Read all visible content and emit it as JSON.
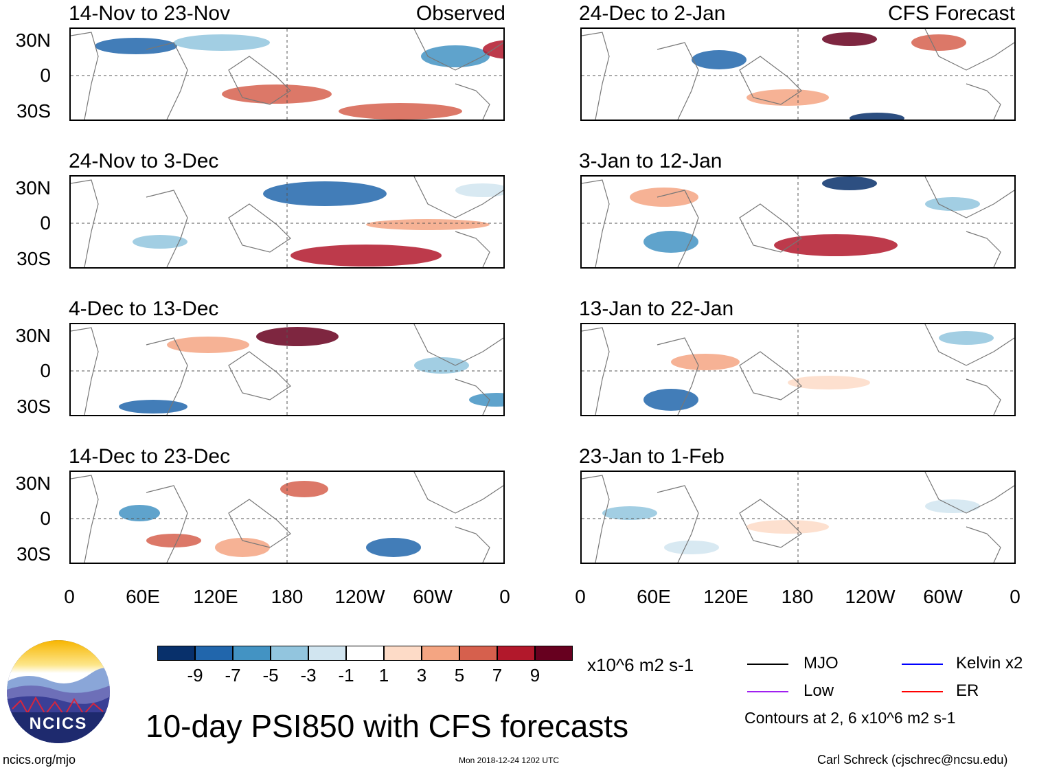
{
  "panels": [
    {
      "title": "14-Nov to 23-Nov",
      "label": "Observed",
      "column": "left",
      "row": 0
    },
    {
      "title": "24-Nov to 3-Dec",
      "label": "",
      "column": "left",
      "row": 1
    },
    {
      "title": "4-Dec to 13-Dec",
      "label": "",
      "column": "left",
      "row": 2
    },
    {
      "title": "14-Dec to 23-Dec",
      "label": "",
      "column": "left",
      "row": 3
    },
    {
      "title": "24-Dec to 2-Jan",
      "label": "CFS Forecast",
      "column": "right",
      "row": 0
    },
    {
      "title": "3-Jan to 12-Jan",
      "label": "",
      "column": "right",
      "row": 1
    },
    {
      "title": "13-Jan to 22-Jan",
      "label": "",
      "column": "right",
      "row": 2
    },
    {
      "title": "23-Jan to 1-Feb",
      "label": "",
      "column": "right",
      "row": 3
    }
  ],
  "lat_labels": [
    "30N",
    "0",
    "30S"
  ],
  "lon_labels": [
    "0",
    "60E",
    "120E",
    "180",
    "120W",
    "60W",
    "0"
  ],
  "colorbar": {
    "ticks": [
      "-9",
      "-7",
      "-5",
      "-3",
      "-1",
      "1",
      "3",
      "5",
      "7",
      "9"
    ],
    "colors": [
      "#08306b",
      "#2166ac",
      "#4393c3",
      "#92c5de",
      "#d1e5f0",
      "#ffffff",
      "#fddbc7",
      "#f4a582",
      "#d6604d",
      "#b2182b",
      "#67001f"
    ],
    "units": "x10^6 m2 s-1"
  },
  "legend": {
    "items": [
      {
        "label": "MJO",
        "color": "#000000"
      },
      {
        "label": "Kelvin x2",
        "color": "#0000ff"
      },
      {
        "label": "Low",
        "color": "#a020f0"
      },
      {
        "label": "ER",
        "color": "#ff0000"
      }
    ],
    "contours_note": "Contours at 2, 6 x10^6 m2 s-1"
  },
  "title": "10-day PSI850 with CFS forecasts",
  "footer": {
    "website": "ncics.org/mjo",
    "timestamp": "Mon 2018-12-24 1202 UTC",
    "author": "Carl Schreck (cjschrec@ncsu.edu)"
  },
  "logo_text": "NCICS"
}
